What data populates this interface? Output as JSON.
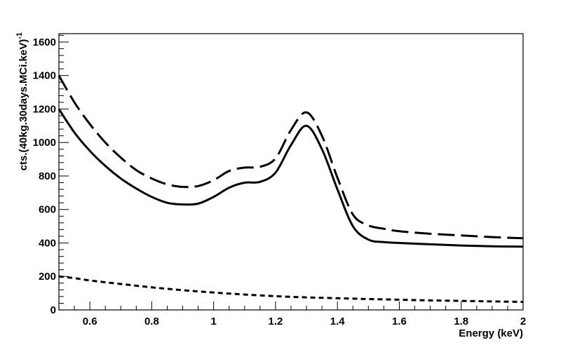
{
  "chart_data": {
    "type": "line",
    "xlabel": "Energy (keV)",
    "ylabel": "cts.(40kg.30days.MCi.keV)",
    "ylabel_superscript": "-1",
    "xlim": [
      0.5,
      2.0
    ],
    "ylim": [
      0,
      1650
    ],
    "grid": false,
    "legend": "none",
    "xticks": [
      "0.6",
      "0.8",
      "1",
      "1.2",
      "1.4",
      "1.6",
      "1.8",
      "2"
    ],
    "yticks": [
      "0",
      "200",
      "400",
      "600",
      "800",
      "1000",
      "1200",
      "1400",
      "1600"
    ],
    "series": [
      {
        "style": "solid",
        "x": [
          0.5,
          0.55,
          0.6,
          0.65,
          0.7,
          0.75,
          0.8,
          0.85,
          0.9,
          0.95,
          1.0,
          1.05,
          1.1,
          1.15,
          1.2,
          1.25,
          1.3,
          1.35,
          1.4,
          1.45,
          1.5,
          1.55,
          1.6,
          1.7,
          1.8,
          1.9,
          2.0
        ],
        "y": [
          1200,
          1060,
          950,
          860,
          785,
          725,
          675,
          640,
          630,
          635,
          675,
          730,
          760,
          765,
          820,
          985,
          1100,
          960,
          720,
          500,
          420,
          405,
          400,
          392,
          385,
          380,
          378
        ]
      },
      {
        "style": "dashed",
        "x": [
          0.5,
          0.55,
          0.6,
          0.65,
          0.7,
          0.75,
          0.8,
          0.85,
          0.9,
          0.95,
          1.0,
          1.05,
          1.1,
          1.15,
          1.2,
          1.25,
          1.3,
          1.35,
          1.4,
          1.45,
          1.5,
          1.55,
          1.6,
          1.7,
          1.8,
          1.9,
          2.0
        ],
        "y": [
          1400,
          1240,
          1110,
          1000,
          910,
          835,
          785,
          750,
          735,
          740,
          775,
          830,
          850,
          855,
          905,
          1075,
          1180,
          1040,
          790,
          570,
          505,
          485,
          470,
          455,
          445,
          435,
          428
        ]
      },
      {
        "style": "dotted",
        "x": [
          0.5,
          0.55,
          0.6,
          0.7,
          0.8,
          0.9,
          1.0,
          1.1,
          1.2,
          1.3,
          1.4,
          1.5,
          1.6,
          1.7,
          1.8,
          1.9,
          2.0
        ],
        "y": [
          200,
          190,
          176,
          155,
          135,
          118,
          104,
          92,
          82,
          75,
          70,
          65,
          61,
          57,
          54,
          51,
          48
        ]
      }
    ]
  }
}
